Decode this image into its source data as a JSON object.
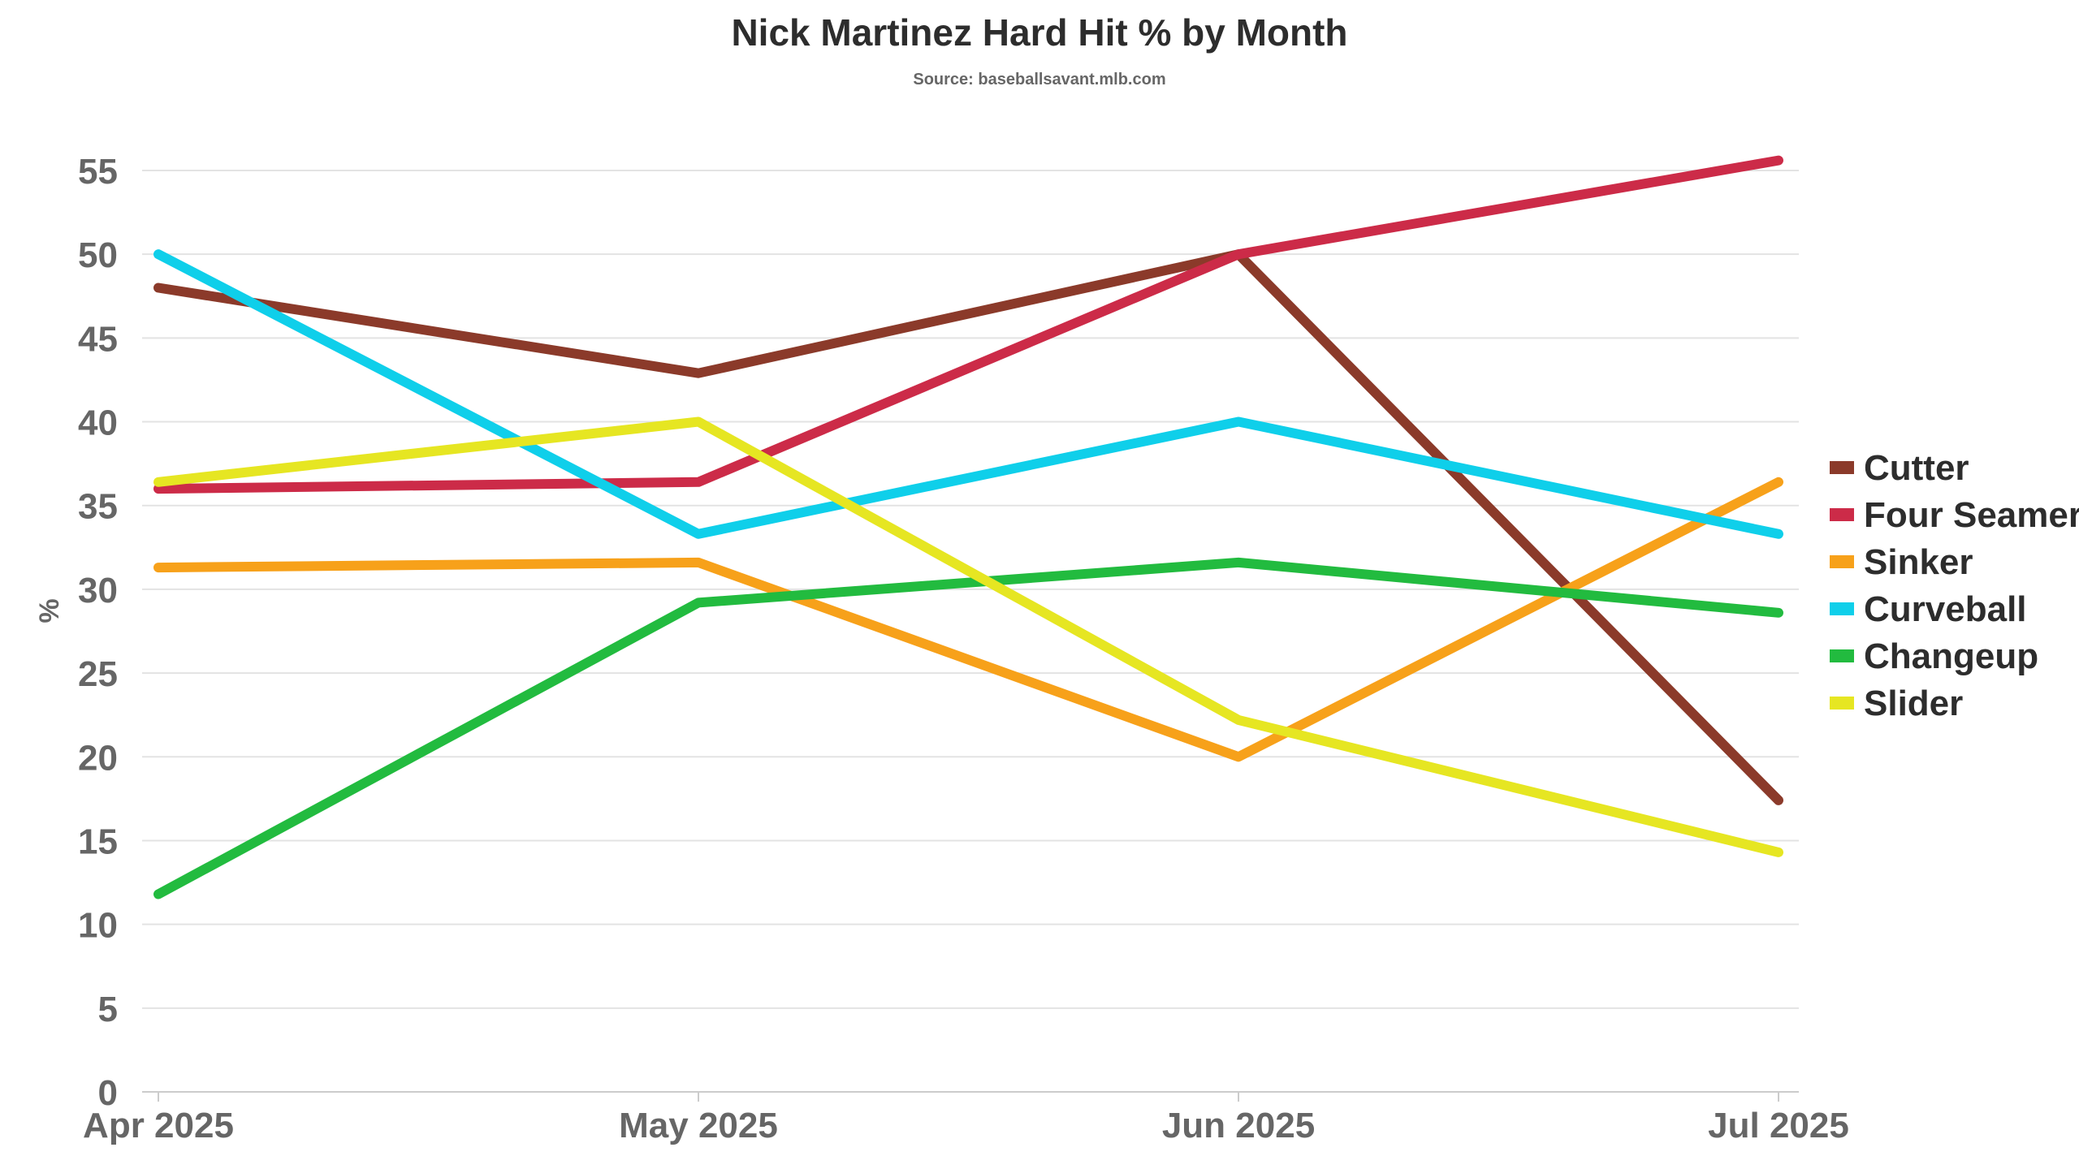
{
  "chart_data": {
    "type": "line",
    "title": "Nick Martinez Hard Hit % by Month",
    "subtitle": "Source: baseballsavant.mlb.com",
    "xlabel": "",
    "ylabel": "%",
    "categories": [
      "Apr 2025",
      "May 2025",
      "Jun 2025",
      "Jul 2025"
    ],
    "ylim": [
      0,
      55
    ],
    "yticks": [
      0,
      5,
      10,
      15,
      20,
      25,
      30,
      35,
      40,
      45,
      50,
      55
    ],
    "grid": true,
    "legend_position": "right",
    "series": [
      {
        "name": "Cutter",
        "color": "#8b3a2a",
        "values": [
          48.0,
          42.9,
          50.0,
          17.4
        ]
      },
      {
        "name": "Four Seamer",
        "color": "#cc2b48",
        "values": [
          36.0,
          36.4,
          50.0,
          55.6
        ]
      },
      {
        "name": "Sinker",
        "color": "#f7a11a",
        "values": [
          31.3,
          31.6,
          20.0,
          36.4
        ]
      },
      {
        "name": "Curveball",
        "color": "#0fcfea",
        "values": [
          50.0,
          33.3,
          40.0,
          33.3
        ]
      },
      {
        "name": "Changeup",
        "color": "#22bb3f",
        "values": [
          11.8,
          29.2,
          31.6,
          28.6
        ]
      },
      {
        "name": "Slider",
        "color": "#e6e622",
        "values": [
          36.4,
          40.0,
          22.2,
          14.3
        ]
      }
    ]
  }
}
